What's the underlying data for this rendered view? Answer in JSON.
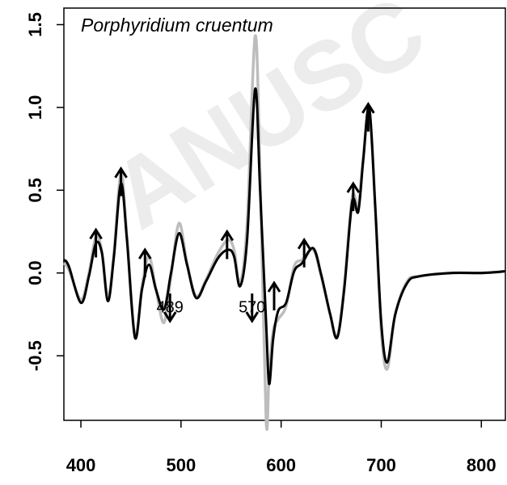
{
  "chart_data": {
    "type": "line",
    "title": "Porphyridium cruentum",
    "watermark": "ANUSC",
    "x": [
      383,
      388,
      400,
      408,
      415,
      421,
      427,
      433,
      440,
      446,
      454,
      461,
      468,
      475,
      483,
      490,
      498,
      506,
      515,
      525,
      537,
      547,
      553,
      559,
      566,
      574,
      579,
      585,
      588,
      592,
      597,
      605,
      613,
      621,
      632,
      640,
      649,
      656,
      663,
      671,
      677,
      682,
      688,
      694,
      700,
      706,
      714,
      726,
      738,
      770,
      800,
      824
    ],
    "series": [
      {
        "color": "#bdbdbd",
        "values": [
          0.06,
          0.02,
          -0.16,
          0.0,
          0.22,
          0.13,
          -0.15,
          0.12,
          0.6,
          0.22,
          -0.38,
          -0.08,
          0.1,
          -0.1,
          -0.3,
          -0.02,
          0.3,
          0.06,
          -0.14,
          -0.04,
          0.12,
          0.2,
          0.14,
          -0.06,
          0.3,
          1.43,
          0.6,
          -0.89,
          -0.6,
          -0.35,
          -0.28,
          -0.2,
          0.04,
          0.08,
          0.14,
          -0.02,
          -0.25,
          -0.38,
          -0.08,
          0.46,
          0.4,
          0.7,
          0.98,
          0.4,
          -0.35,
          -0.58,
          -0.25,
          -0.05,
          -0.02,
          0.0,
          0.0,
          0.01
        ]
      },
      {
        "color": "#000000",
        "values": [
          0.08,
          0.04,
          -0.18,
          -0.02,
          0.18,
          0.12,
          -0.17,
          0.1,
          0.54,
          0.2,
          -0.39,
          -0.1,
          0.05,
          -0.1,
          -0.22,
          0.0,
          0.24,
          0.05,
          -0.15,
          -0.05,
          0.09,
          0.14,
          0.1,
          -0.08,
          0.2,
          1.11,
          0.5,
          -0.3,
          -0.67,
          -0.4,
          -0.23,
          -0.18,
          0.01,
          0.06,
          0.15,
          -0.01,
          -0.25,
          -0.39,
          -0.1,
          0.43,
          0.37,
          0.68,
          1.0,
          0.4,
          -0.3,
          -0.54,
          -0.25,
          -0.06,
          -0.02,
          0.0,
          0.0,
          0.01
        ]
      }
    ],
    "arrows": [
      {
        "x": 415,
        "y": 0.26,
        "direction": "down"
      },
      {
        "x": 440,
        "y": 0.63,
        "direction": "down"
      },
      {
        "x": 464,
        "y": 0.14,
        "direction": "down"
      },
      {
        "x": 546,
        "y": 0.25,
        "direction": "down"
      },
      {
        "x": 593,
        "y": -0.06,
        "direction": "down"
      },
      {
        "x": 623,
        "y": 0.2,
        "direction": "down"
      },
      {
        "x": 672,
        "y": 0.54,
        "direction": "down"
      },
      {
        "x": 687,
        "y": 1.02,
        "direction": "down"
      },
      {
        "x": 489,
        "y": -0.29,
        "direction": "up",
        "label": "489"
      },
      {
        "x": 571,
        "y": -0.29,
        "direction": "up",
        "label": "570"
      }
    ],
    "xlim": [
      383,
      824
    ],
    "xticks": [
      400,
      500,
      600,
      700,
      800
    ],
    "ylim": [
      -0.89,
      1.6
    ],
    "yticks": [
      -0.5,
      {
        "value": 0,
        "label": "0.0"
      },
      0.5,
      {
        "value": 1,
        "label": "1.0"
      },
      1.5
    ]
  }
}
